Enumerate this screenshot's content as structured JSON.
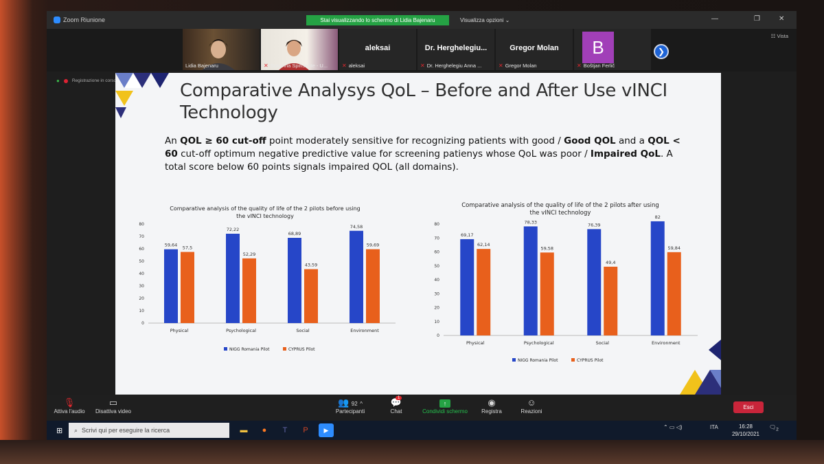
{
  "window": {
    "title": "Zoom Riunione",
    "share_banner": "Stai visualizzando lo schermo di Lidia Bajenaru",
    "view_options": "Visualizza opzioni ⌄",
    "vista": "☷ Vista",
    "recording": "Registrazione in corso"
  },
  "participants": [
    {
      "name": "Lidia Bajenaru",
      "muted": false,
      "type": "video"
    },
    {
      "name": "Susanna Spinsante - U...",
      "muted": true,
      "type": "video"
    },
    {
      "big_name": "aleksai",
      "name": "aleksai",
      "muted": true,
      "type": "name"
    },
    {
      "big_name": "Dr. Herghelegiu...",
      "name": "Dr. Herghelegiu Anna ...",
      "muted": true,
      "type": "name"
    },
    {
      "big_name": "Gregor Molan",
      "name": "Gregor Molan",
      "muted": true,
      "type": "name"
    },
    {
      "avatar_letter": "B",
      "name": "Boštjan Ferlič",
      "muted": true,
      "type": "avatar"
    }
  ],
  "slide": {
    "title": "Comparative Analysys QoL – Before and After Use vINCI Technology",
    "body": {
      "p1": "An ",
      "b1": "QOL ≥ 60 cut-off",
      "p2": " point moderately sensitive for recognizing patients with good / ",
      "b2": "Good QOL",
      "p3": " and a ",
      "b3": "QOL < 60",
      "p4": " cut-off optimum negative predictive value for screening patienys whose QoL was poor / ",
      "b4": "Impaired QoL",
      "p5": ". A total score below 60 points signals impaired QOL (all domains)."
    }
  },
  "chart_data": [
    {
      "type": "bar",
      "title": "Comparative analysis of the quality of life of the 2 pilots before using the vINCI technology",
      "categories": [
        "Physical",
        "Psychological",
        "Social",
        "Environment"
      ],
      "series": [
        {
          "name": "NIGG Romania Pilot",
          "values": [
            59.64,
            72.22,
            68.89,
            74.58
          ],
          "labels": [
            "59,64",
            "72,22",
            "68,89",
            "74,58"
          ],
          "color": "#2646c8"
        },
        {
          "name": "CYPRUS Pilot",
          "values": [
            57.5,
            52.29,
            43.59,
            59.69
          ],
          "labels": [
            "57,5",
            "52,29",
            "43,59",
            "59,69"
          ],
          "color": "#e8601c"
        }
      ],
      "ylim": [
        0,
        80
      ],
      "yticks": [
        "0",
        "10",
        "20",
        "30",
        "40",
        "50",
        "60",
        "70",
        "80"
      ],
      "grid": false,
      "legend": "bottom"
    },
    {
      "type": "bar",
      "title": "Comparative analysis of the quality of life of the 2 pilots after using the vINCI technology",
      "categories": [
        "Physical",
        "Psychological",
        "Social",
        "Environment"
      ],
      "series": [
        {
          "name": "NIGG Romania Pilot",
          "values": [
            69.17,
            78.33,
            76.39,
            82
          ],
          "labels": [
            "69,17",
            "78,33",
            "76,39",
            "82"
          ],
          "color": "#2646c8"
        },
        {
          "name": "CYPRUS Pilot",
          "values": [
            62.14,
            59.58,
            49.4,
            59.84
          ],
          "labels": [
            "62,14",
            "59,58",
            "49,4",
            "59,84"
          ],
          "color": "#e8601c"
        }
      ],
      "ylim": [
        0,
        80
      ],
      "yticks": [
        "0",
        "10",
        "20",
        "30",
        "40",
        "50",
        "60",
        "70",
        "80"
      ],
      "grid": false,
      "legend": "bottom"
    }
  ],
  "toolbar": {
    "audio": "Attiva l'audio",
    "video": "Disattiva video",
    "participants_count": "92",
    "participants": "Partecipanti",
    "chat": "Chat",
    "chat_badge": "1",
    "share": "Condividi schermo",
    "record": "Registra",
    "reactions": "Reazioni",
    "exit": "Esci"
  },
  "taskbar": {
    "search_placeholder": "Scrivi qui per eseguire la ricerca",
    "lang": "ITA",
    "time": "16:28",
    "date": "29/10/2021",
    "notif_count": "2"
  },
  "colors": {
    "zoom_blue": "#2d8cff",
    "share_green": "#25a244",
    "exit_red": "#c9253a",
    "bar_blue": "#2646c8",
    "bar_orange": "#e8601c"
  }
}
